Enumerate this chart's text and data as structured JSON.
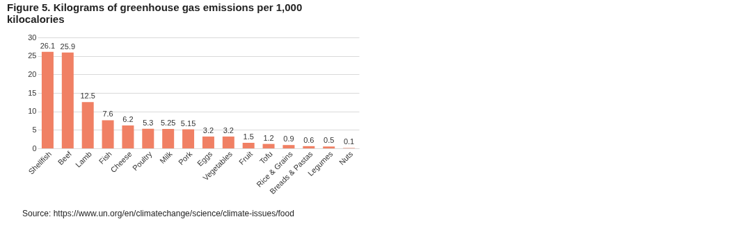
{
  "chart_data": {
    "type": "bar",
    "title": "Figure 5. Kilograms of greenhouse gas emissions per 1,000 kilocalories",
    "categories": [
      "Shellfish",
      "Beef",
      "Lamb",
      "Fish",
      "Cheese",
      "Poultry",
      "Milk",
      "Pork",
      "Eggs",
      "Vegetables",
      "Fruit",
      "Tofu",
      "Rice & Grains",
      "Breads & Pastas",
      "Legumes",
      "Nuts"
    ],
    "values": [
      26.1,
      25.9,
      12.5,
      7.6,
      6.2,
      5.3,
      5.25,
      5.15,
      3.2,
      3.2,
      1.5,
      1.2,
      0.9,
      0.6,
      0.5,
      0.1
    ],
    "color": "#f08064",
    "ylim": [
      0,
      30
    ],
    "yticks": [
      0,
      5,
      10,
      15,
      20,
      25,
      30
    ],
    "grid": "y",
    "data_labels": true,
    "annotations": [
      "Source: https://www.un.org/en/climatechange/science/climate-issues/food"
    ]
  }
}
